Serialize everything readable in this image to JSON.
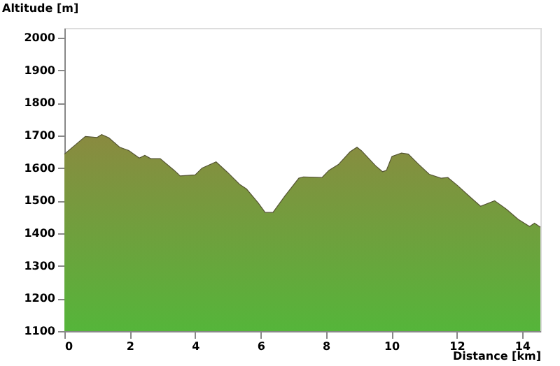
{
  "chart_data": {
    "type": "area",
    "xlabel": "Distance [km]",
    "ylabel": "Altitude [m]",
    "xlim": [
      0,
      14.56
    ],
    "ylim": [
      1100,
      2030
    ],
    "xticks": [
      0,
      2,
      4,
      6,
      8,
      10,
      12,
      14
    ],
    "yticks": [
      1100,
      1200,
      1300,
      1400,
      1500,
      1600,
      1700,
      1800,
      1900,
      2000
    ],
    "grid": false,
    "series": [
      {
        "color": "#8a8a40",
        "x": [
          0,
          0.64,
          1.0,
          1.14,
          1.36,
          1.69,
          1.97,
          2.29,
          2.46,
          2.64,
          2.93,
          3.36,
          3.54,
          4.0,
          4.21,
          4.64,
          5.0,
          5.36,
          5.57,
          5.93,
          6.14,
          6.38,
          6.74,
          7.17,
          7.31,
          7.88,
          8.09,
          8.38,
          8.74,
          8.95,
          9.09,
          9.52,
          9.73,
          9.85,
          10.02,
          10.31,
          10.52,
          10.81,
          11.16,
          11.52,
          11.73,
          12.02,
          12.38,
          12.73,
          13.16,
          13.52,
          13.88,
          14.23,
          14.38,
          14.56
        ],
        "values": [
          1643,
          1697,
          1694,
          1703,
          1693,
          1664,
          1654,
          1631,
          1639,
          1629,
          1629,
          1593,
          1576,
          1579,
          1600,
          1619,
          1586,
          1550,
          1536,
          1493,
          1464,
          1464,
          1514,
          1569,
          1573,
          1571,
          1593,
          1611,
          1650,
          1664,
          1653,
          1607,
          1589,
          1593,
          1636,
          1646,
          1643,
          1614,
          1581,
          1569,
          1571,
          1547,
          1514,
          1483,
          1500,
          1474,
          1443,
          1421,
          1431,
          1419
        ]
      }
    ]
  }
}
